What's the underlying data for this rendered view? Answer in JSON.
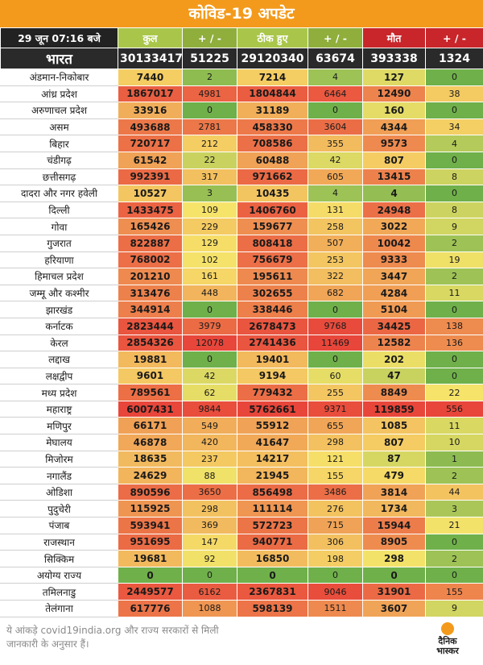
{
  "title": "कोविड-19 अपडेट",
  "header": {
    "date": "29 जून 07:16 बजे",
    "total": "कुल",
    "change1": "+ / -",
    "recovered": "ठीक हुए",
    "change2": "+ / -",
    "deaths": "मौत",
    "change3": "+ / -"
  },
  "india": {
    "name": "भारत",
    "total": "30133417",
    "total_change": "51225",
    "recovered": "29120340",
    "recovered_change": "63674",
    "deaths": "393338",
    "deaths_change": "1324"
  },
  "rows": [
    [
      "अंडमान-निकोबार",
      "7440",
      "2",
      "7214",
      "4",
      "127",
      "0"
    ],
    [
      "आंध्र प्रदेश",
      "1867017",
      "4981",
      "1804844",
      "6464",
      "12490",
      "38"
    ],
    [
      "अरुणाचल प्रदेश",
      "33916",
      "0",
      "31189",
      "0",
      "160",
      "0"
    ],
    [
      "असम",
      "493688",
      "2781",
      "458330",
      "3604",
      "4344",
      "34"
    ],
    [
      "बिहार",
      "720717",
      "212",
      "708586",
      "355",
      "9573",
      "4"
    ],
    [
      "चंडीगढ़",
      "61542",
      "22",
      "60488",
      "42",
      "807",
      "0"
    ],
    [
      "छत्तीसगढ़",
      "992391",
      "317",
      "971662",
      "605",
      "13415",
      "8"
    ],
    [
      "दादरा और नगर हवेली",
      "10527",
      "3",
      "10435",
      "4",
      "4",
      "0"
    ],
    [
      "दिल्ली",
      "1433475",
      "109",
      "1406760",
      "131",
      "24948",
      "8"
    ],
    [
      "गोवा",
      "165426",
      "229",
      "159677",
      "258",
      "3022",
      "9"
    ],
    [
      "गुजरात",
      "822887",
      "129",
      "808418",
      "507",
      "10042",
      "2"
    ],
    [
      "हरियाणा",
      "768002",
      "102",
      "756679",
      "253",
      "9333",
      "19"
    ],
    [
      "हिमाचल प्रदेश",
      "201210",
      "161",
      "195611",
      "322",
      "3447",
      "2"
    ],
    [
      "जम्मू और कश्मीर",
      "313476",
      "448",
      "302655",
      "682",
      "4284",
      "11"
    ],
    [
      "झारखंड",
      "344914",
      "0",
      "338446",
      "0",
      "5104",
      "0"
    ],
    [
      "कर्नाटक",
      "2823444",
      "3979",
      "2678473",
      "9768",
      "34425",
      "138"
    ],
    [
      "केरल",
      "2854326",
      "12078",
      "2741436",
      "11469",
      "12582",
      "136"
    ],
    [
      "लद्दाख",
      "19881",
      "0",
      "19401",
      "0",
      "202",
      "0"
    ],
    [
      "लक्षद्वीप",
      "9601",
      "42",
      "9194",
      "60",
      "47",
      "0"
    ],
    [
      "मध्य प्रदेश",
      "789561",
      "62",
      "779432",
      "255",
      "8849",
      "22"
    ],
    [
      "महाराष्ट्र",
      "6007431",
      "9844",
      "5762661",
      "9371",
      "119859",
      "556"
    ],
    [
      "मणिपुर",
      "66171",
      "549",
      "55912",
      "655",
      "1085",
      "11"
    ],
    [
      "मेघालय",
      "46878",
      "420",
      "41647",
      "298",
      "807",
      "10"
    ],
    [
      "मिजोरम",
      "18635",
      "237",
      "14217",
      "121",
      "87",
      "1"
    ],
    [
      "नगालैंड",
      "24629",
      "88",
      "21945",
      "155",
      "479",
      "2"
    ],
    [
      "ओडिशा",
      "890596",
      "3650",
      "856498",
      "3486",
      "3814",
      "44"
    ],
    [
      "पुदुचेरी",
      "115925",
      "298",
      "111114",
      "276",
      "1734",
      "3"
    ],
    [
      "पंजाब",
      "593941",
      "369",
      "572723",
      "715",
      "15944",
      "21"
    ],
    [
      "राजस्थान",
      "951695",
      "147",
      "940771",
      "306",
      "8905",
      "0"
    ],
    [
      "सिक्किम",
      "19681",
      "92",
      "16850",
      "198",
      "298",
      "2"
    ],
    [
      "अयोग्य राज्य",
      "0",
      "0",
      "0",
      "0",
      "0",
      "0"
    ],
    [
      "तमिलनाडु",
      "2449577",
      "6162",
      "2367831",
      "9046",
      "31901",
      "155"
    ],
    [
      "तेलंगाना",
      "617776",
      "1088",
      "598139",
      "1511",
      "3607",
      "9"
    ]
  ],
  "footer": {
    "source": "ये आंकड़े covid19india.org और राज्य सरकारों से मिली जानकारी के अनुसार हैं।",
    "logo_line1": "दैनिक",
    "logo_line2": "भास्कर"
  },
  "colors": {
    "title_bg": "#f39a1c",
    "scale_low": "#6fb04a",
    "scale_mid": "#f6e36a",
    "scale_high": "#e8463a",
    "header_red": "#c8262a"
  }
}
